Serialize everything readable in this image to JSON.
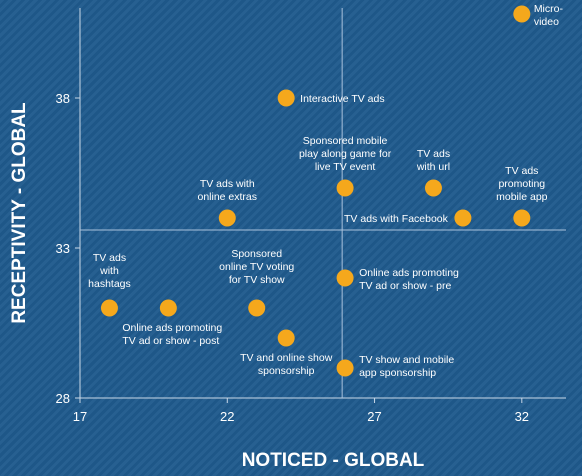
{
  "chart_data": {
    "type": "scatter",
    "xlabel": "NOTICED - GLOBAL",
    "ylabel": "RECEPTIVITY - GLOBAL",
    "xlim": [
      17,
      33.5
    ],
    "ylim": [
      28,
      41
    ],
    "xticks": [
      "17",
      "22",
      "27",
      "32"
    ],
    "yticks": [
      "28",
      "33",
      "38"
    ],
    "reference_lines": {
      "x": 25.9,
      "y": 33.6
    },
    "point_color": "#f5a81c",
    "points": [
      {
        "label": "Micro-video",
        "x": 32,
        "y": 40.8
      },
      {
        "label": "Interactive TV ads",
        "x": 24,
        "y": 38
      },
      {
        "label": "Sponsored mobile play along game for live TV event",
        "x": 26,
        "y": 35
      },
      {
        "label": "TV ads with url",
        "x": 29,
        "y": 35
      },
      {
        "label": "TV ads promoting mobile app",
        "x": 32,
        "y": 34
      },
      {
        "label": "TV ads with Facebook",
        "x": 30,
        "y": 34
      },
      {
        "label": "TV ads with online extras",
        "x": 22,
        "y": 34
      },
      {
        "label": "Online ads promoting TV ad or show - pre",
        "x": 26,
        "y": 32
      },
      {
        "label": "TV ads with hashtags",
        "x": 18,
        "y": 31
      },
      {
        "label": "Online ads promoting TV ad or show - post",
        "x": 20,
        "y": 31
      },
      {
        "label": "Sponsored online TV voting for TV show",
        "x": 23,
        "y": 31
      },
      {
        "label": "TV and online show sponsorship",
        "x": 24,
        "y": 30
      },
      {
        "label": "TV show and mobile app sponsorship",
        "x": 26,
        "y": 29
      }
    ]
  }
}
